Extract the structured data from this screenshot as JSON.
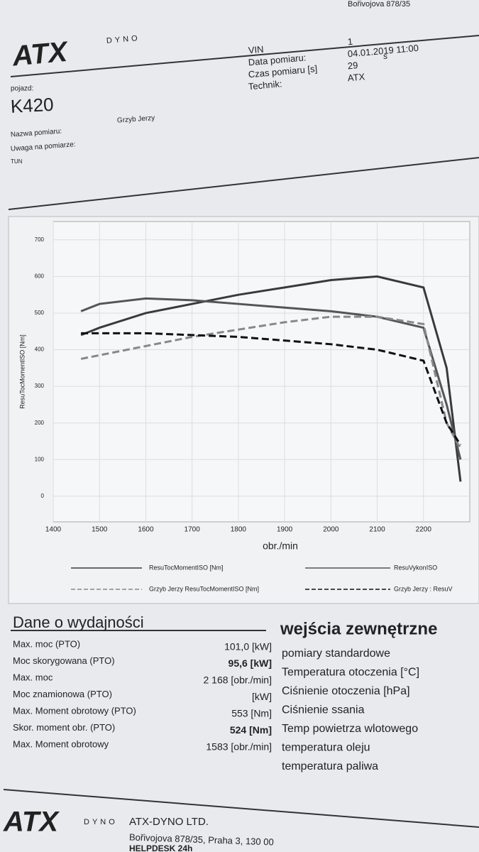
{
  "header": {
    "logo": "ATX",
    "logo_sub": "DYNO",
    "address_top": "Bořivojova 878/35",
    "fields": [
      {
        "label": "VIN",
        "value": "1"
      },
      {
        "label": "Data pomiaru:",
        "value": "04.01.2019 11:00"
      },
      {
        "label": "Czas pomiaru [s]",
        "value": "29"
      },
      {
        "label": "Technik:",
        "value": "ATX"
      }
    ],
    "unit_s": "s",
    "vehicle_label": "pojazd:",
    "vehicle": "K420",
    "name_label": "Nazwa pomiaru:",
    "name": "Grzyb Jerzy",
    "note_label": "Uwaga na pomiarze:",
    "note": "TUN"
  },
  "chart_data": {
    "type": "line",
    "y_label": "ResuTocMomentISO [Nm]",
    "x_label": "obr./min",
    "x": [
      1460,
      1500,
      1600,
      1700,
      1800,
      1900,
      2000,
      2100,
      2200,
      2250,
      2280
    ],
    "series": [
      {
        "name": "ResuTocMomentISO [Nm]",
        "color": "#3a3a3a",
        "style": "solid",
        "values": [
          440,
          460,
          500,
          525,
          550,
          570,
          590,
          600,
          570,
          350,
          40
        ]
      },
      {
        "name": "ResuVykonISO",
        "color": "#555555",
        "style": "solid",
        "values": [
          505,
          525,
          540,
          535,
          525,
          515,
          505,
          490,
          460,
          250,
          100
        ]
      },
      {
        "name": "Grzyb Jerzy ResuTocMomentISO [Nm]",
        "color": "#888888",
        "style": "dashed",
        "values": [
          375,
          385,
          410,
          435,
          455,
          475,
          490,
          490,
          470,
          200,
          130
        ]
      },
      {
        "name": "Grzyb Jerzy : ResuV",
        "color": "#111111",
        "style": "dashed",
        "values": [
          445,
          445,
          445,
          440,
          435,
          425,
          415,
          400,
          370,
          200,
          140
        ]
      }
    ],
    "xlim": [
      1400,
      2300
    ],
    "ylim": [
      -70,
      750
    ],
    "xticks": [
      1400,
      1500,
      1600,
      1700,
      1800,
      1900,
      2000,
      2100,
      2200
    ],
    "yticks": [
      0,
      100,
      200,
      300,
      400,
      500,
      600,
      700
    ],
    "grid": true
  },
  "performance": {
    "title": "Dane o wydajności",
    "rows": [
      {
        "label": "Max. moc (PTO)",
        "value": "101,0 [kW]",
        "bold": false
      },
      {
        "label": "Moc skorygowana (PTO)",
        "value": "95,6 [kW]",
        "bold": true
      },
      {
        "label": "Max. moc",
        "value": "2 168 [obr./min]",
        "bold": false
      },
      {
        "label": "Moc znamionowa (PTO)",
        "value": "[kW]",
        "bold": false
      },
      {
        "label": "Max. Moment obrotowy (PTO)",
        "value": "553 [Nm]",
        "bold": false
      },
      {
        "label": "Skor. moment obr. (PTO)",
        "value": "524 [Nm]",
        "bold": true
      },
      {
        "label": "Max. Moment obrotowy",
        "value": "1583 [obr./min]",
        "bold": false
      }
    ]
  },
  "inputs": {
    "title": "wejścia zewnętrzne",
    "items": [
      "pomiary standardowe",
      "Temperatura otoczenia [°C]",
      "Ciśnienie otoczenia [hPa]",
      "Ciśnienie ssania",
      "Temp powietrza wlotowego",
      "temperatura oleju",
      "temperatura paliwa"
    ]
  },
  "footer": {
    "logo": "ATX",
    "logo_sub": "DYNO",
    "company": "ATX-DYNO LTD.",
    "address": "Bořivojova 878/35, Praha 3, 130 00",
    "helpdesk": "HELPDESK 24h"
  }
}
